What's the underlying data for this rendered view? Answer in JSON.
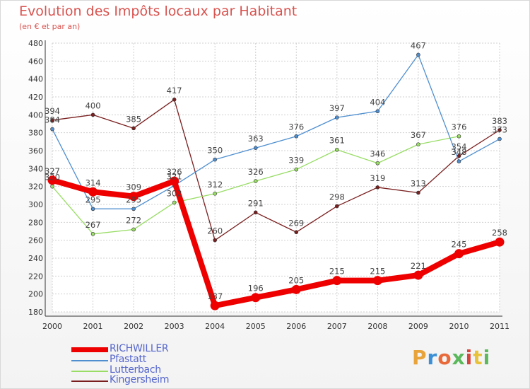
{
  "title": "Evolution des Impôts locaux par Habitant",
  "subtitle": "(en € et par an)",
  "logo": {
    "letters": [
      "P",
      "r",
      "o",
      "x",
      "i",
      "t",
      "i"
    ],
    "colors": [
      "#e8a43a",
      "#3a8fd6",
      "#e86a3a",
      "#5bb85b",
      "#d6453a",
      "#e8c33a",
      "#5bb85b"
    ]
  },
  "chart_data": {
    "type": "line",
    "x": [
      "2000",
      "2001",
      "2002",
      "2003",
      "2004",
      "2005",
      "2006",
      "2007",
      "2008",
      "2009",
      "2010",
      "2011"
    ],
    "ylim": [
      180,
      480
    ],
    "yticks": [
      180,
      200,
      220,
      240,
      260,
      280,
      300,
      320,
      340,
      360,
      380,
      400,
      420,
      440,
      460,
      480
    ],
    "ytick_labels": [
      "180",
      "200",
      "220",
      "240",
      "260",
      "280",
      "300",
      "320",
      "340",
      "360",
      "380",
      "400",
      "420",
      "440",
      "460",
      "480"
    ],
    "grid": true,
    "legend_position": "bottom-left",
    "series": [
      {
        "name": "Kingersheim",
        "color": "#7a1f1f",
        "width": 1.3,
        "marker": 2.5,
        "values": [
          394,
          400,
          385,
          417,
          260,
          291,
          269,
          298,
          319,
          313,
          354,
          383
        ],
        "labels": [
          "394",
          "400",
          "385",
          "417",
          "260",
          "291",
          "269",
          "298",
          "319",
          "313",
          "354",
          "383"
        ]
      },
      {
        "name": "Lutterbach",
        "color": "#99dd66",
        "width": 1.3,
        "marker": 2.5,
        "values": [
          320,
          267,
          272,
          302,
          312,
          326,
          339,
          361,
          346,
          367,
          376,
          null
        ],
        "labels": [
          "320",
          "267",
          "272",
          "302",
          "312",
          "326",
          "339",
          "361",
          "346",
          "367",
          "376",
          ""
        ]
      },
      {
        "name": "Pfastatt",
        "color": "#4f8fd0",
        "width": 1.3,
        "marker": 2.5,
        "values": [
          384,
          295,
          295,
          321,
          350,
          363,
          376,
          397,
          404,
          467,
          348,
          373
        ],
        "labels": [
          "384",
          "295",
          "295",
          "321",
          "350",
          "363",
          "376",
          "397",
          "404",
          "467",
          "348",
          "373"
        ]
      },
      {
        "name": "RICHWILLER",
        "color": "#ee0000",
        "width": 8,
        "marker": 6.5,
        "values": [
          327,
          314,
          309,
          326,
          187,
          196,
          205,
          215,
          215,
          221,
          245,
          258
        ],
        "labels": [
          "327",
          "314",
          "309",
          "326",
          "187",
          "196",
          "205",
          "215",
          "215",
          "221",
          "245",
          "258"
        ]
      }
    ],
    "legend": [
      {
        "name": "RICHWILLER",
        "color": "#ee0000",
        "thick": true,
        "text_color": "#5566cc"
      },
      {
        "name": "Pfastatt",
        "color": "#4f8fd0",
        "thick": false,
        "text_color": "#5566cc"
      },
      {
        "name": "Lutterbach",
        "color": "#99dd66",
        "thick": false,
        "text_color": "#5566cc"
      },
      {
        "name": "Kingersheim",
        "color": "#7a1f1f",
        "thick": false,
        "text_color": "#5566cc"
      }
    ]
  }
}
